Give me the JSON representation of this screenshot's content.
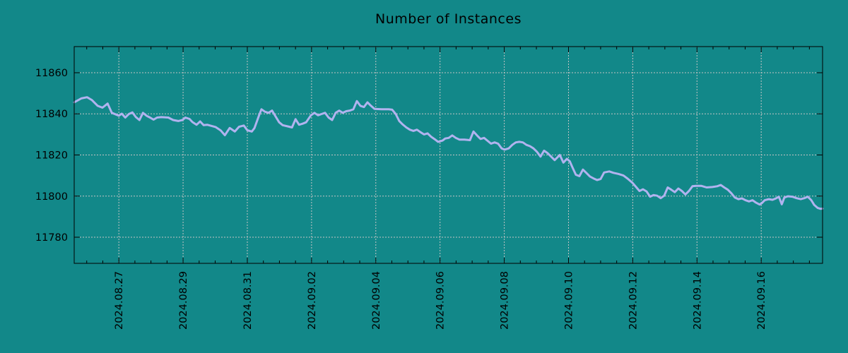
{
  "chart_data": {
    "type": "line",
    "title": "Number of Instances",
    "xlabel": "",
    "ylabel": "",
    "legend": null,
    "colors": {
      "background": "#128889",
      "line": "#b1b3ef",
      "grid": "#c4c4c4",
      "axis": "#000000",
      "text": "#000000"
    },
    "x_axis": {
      "tick_labels": [
        "2024.08.27",
        "2024.08.29",
        "2024.08.31",
        "2024.09.02",
        "2024.09.04",
        "2024.09.06",
        "2024.09.08",
        "2024.09.10",
        "2024.09.12",
        "2024.09.14",
        "2024.09.16"
      ],
      "tick_days": [
        0,
        2,
        4,
        6,
        8,
        10,
        12,
        14,
        16,
        18,
        20
      ],
      "minor_step_days": 0.5,
      "lim_days": [
        -1.39,
        21.91
      ],
      "units": "days since 2024.08.27"
    },
    "y_axis": {
      "ticks": [
        11780,
        11800,
        11820,
        11840,
        11860
      ],
      "lim": [
        11767.3,
        11872.7
      ]
    },
    "grid": true,
    "legend_position": "none",
    "series": [
      {
        "name": "instances",
        "points": [
          [
            -1.39,
            11845.6
          ],
          [
            -1.17,
            11847.5
          ],
          [
            -0.99,
            11848.1
          ],
          [
            -0.84,
            11846.7
          ],
          [
            -0.66,
            11843.9
          ],
          [
            -0.51,
            11843.0
          ],
          [
            -0.35,
            11845.0
          ],
          [
            -0.22,
            11840.5
          ],
          [
            -0.11,
            11839.8
          ],
          [
            0.0,
            11839.1
          ],
          [
            0.09,
            11840.1
          ],
          [
            0.2,
            11838.2
          ],
          [
            0.31,
            11839.9
          ],
          [
            0.42,
            11840.7
          ],
          [
            0.53,
            11838.4
          ],
          [
            0.64,
            11837.0
          ],
          [
            0.75,
            11840.5
          ],
          [
            0.86,
            11839.1
          ],
          [
            0.97,
            11838.2
          ],
          [
            1.08,
            11837.2
          ],
          [
            1.19,
            11838.2
          ],
          [
            1.32,
            11838.4
          ],
          [
            1.54,
            11838.2
          ],
          [
            1.69,
            11837.0
          ],
          [
            1.85,
            11836.5
          ],
          [
            1.98,
            11837.0
          ],
          [
            2.07,
            11838.2
          ],
          [
            2.2,
            11837.5
          ],
          [
            2.29,
            11836.0
          ],
          [
            2.42,
            11834.7
          ],
          [
            2.53,
            11836.3
          ],
          [
            2.64,
            11834.5
          ],
          [
            2.75,
            11834.7
          ],
          [
            2.86,
            11834.2
          ],
          [
            3.01,
            11833.6
          ],
          [
            3.17,
            11831.9
          ],
          [
            3.3,
            11829.6
          ],
          [
            3.45,
            11833.1
          ],
          [
            3.61,
            11831.4
          ],
          [
            3.74,
            11833.7
          ],
          [
            3.89,
            11834.3
          ],
          [
            4.0,
            11832.0
          ],
          [
            4.14,
            11831.4
          ],
          [
            4.22,
            11833.0
          ],
          [
            4.38,
            11839.9
          ],
          [
            4.44,
            11842.2
          ],
          [
            4.55,
            11841.0
          ],
          [
            4.66,
            11840.5
          ],
          [
            4.77,
            11841.6
          ],
          [
            4.88,
            11838.7
          ],
          [
            4.99,
            11835.9
          ],
          [
            5.1,
            11834.5
          ],
          [
            5.26,
            11833.9
          ],
          [
            5.39,
            11833.4
          ],
          [
            5.5,
            11837.4
          ],
          [
            5.61,
            11834.7
          ],
          [
            5.72,
            11835.2
          ],
          [
            5.83,
            11835.9
          ],
          [
            5.98,
            11839.3
          ],
          [
            6.09,
            11840.5
          ],
          [
            6.2,
            11839.3
          ],
          [
            6.31,
            11839.9
          ],
          [
            6.42,
            11840.5
          ],
          [
            6.53,
            11838.2
          ],
          [
            6.64,
            11837.0
          ],
          [
            6.75,
            11840.5
          ],
          [
            6.86,
            11841.6
          ],
          [
            6.97,
            11840.5
          ],
          [
            7.08,
            11841.3
          ],
          [
            7.19,
            11841.6
          ],
          [
            7.3,
            11842.2
          ],
          [
            7.41,
            11846.2
          ],
          [
            7.52,
            11843.9
          ],
          [
            7.63,
            11843.3
          ],
          [
            7.74,
            11845.6
          ],
          [
            7.85,
            11843.9
          ],
          [
            7.96,
            11842.4
          ],
          [
            8.18,
            11842.2
          ],
          [
            8.4,
            11842.2
          ],
          [
            8.51,
            11842.0
          ],
          [
            8.62,
            11839.9
          ],
          [
            8.73,
            11836.5
          ],
          [
            8.84,
            11834.8
          ],
          [
            8.95,
            11833.4
          ],
          [
            9.06,
            11832.3
          ],
          [
            9.17,
            11831.7
          ],
          [
            9.28,
            11832.3
          ],
          [
            9.39,
            11831.1
          ],
          [
            9.5,
            11830.0
          ],
          [
            9.61,
            11830.5
          ],
          [
            9.72,
            11828.9
          ],
          [
            9.83,
            11827.7
          ],
          [
            9.94,
            11826.4
          ],
          [
            10.08,
            11827.0
          ],
          [
            10.16,
            11828.0
          ],
          [
            10.27,
            11828.3
          ],
          [
            10.38,
            11829.5
          ],
          [
            10.49,
            11828.3
          ],
          [
            10.6,
            11827.5
          ],
          [
            10.76,
            11827.5
          ],
          [
            10.93,
            11827.2
          ],
          [
            11.04,
            11831.4
          ],
          [
            11.15,
            11829.5
          ],
          [
            11.26,
            11827.8
          ],
          [
            11.37,
            11828.3
          ],
          [
            11.48,
            11826.9
          ],
          [
            11.59,
            11825.5
          ],
          [
            11.7,
            11826.1
          ],
          [
            11.81,
            11825.5
          ],
          [
            11.92,
            11823.2
          ],
          [
            12.01,
            11822.6
          ],
          [
            12.14,
            11823.2
          ],
          [
            12.25,
            11824.9
          ],
          [
            12.36,
            11826.1
          ],
          [
            12.47,
            11826.4
          ],
          [
            12.58,
            11826.1
          ],
          [
            12.69,
            11824.9
          ],
          [
            12.8,
            11824.3
          ],
          [
            12.91,
            11823.2
          ],
          [
            13.02,
            11821.5
          ],
          [
            13.13,
            11819.2
          ],
          [
            13.24,
            11822.1
          ],
          [
            13.35,
            11820.9
          ],
          [
            13.46,
            11819.2
          ],
          [
            13.57,
            11817.5
          ],
          [
            13.73,
            11820.0
          ],
          [
            13.84,
            11816.3
          ],
          [
            13.95,
            11818.1
          ],
          [
            14.04,
            11816.9
          ],
          [
            14.12,
            11814.1
          ],
          [
            14.23,
            11810.4
          ],
          [
            14.34,
            11809.7
          ],
          [
            14.45,
            11812.9
          ],
          [
            14.56,
            11811.2
          ],
          [
            14.67,
            11809.5
          ],
          [
            14.78,
            11808.6
          ],
          [
            14.89,
            11807.8
          ],
          [
            15.0,
            11808.3
          ],
          [
            15.11,
            11811.5
          ],
          [
            15.27,
            11812.0
          ],
          [
            15.4,
            11811.3
          ],
          [
            15.55,
            11810.8
          ],
          [
            15.71,
            11810.0
          ],
          [
            15.84,
            11808.5
          ],
          [
            15.99,
            11806.5
          ],
          [
            16.1,
            11804.5
          ],
          [
            16.21,
            11802.5
          ],
          [
            16.32,
            11803.3
          ],
          [
            16.43,
            11802.3
          ],
          [
            16.54,
            11799.7
          ],
          [
            16.65,
            11800.5
          ],
          [
            16.76,
            11800.2
          ],
          [
            16.87,
            11799.0
          ],
          [
            16.98,
            11800.2
          ],
          [
            17.09,
            11804.2
          ],
          [
            17.2,
            11803.1
          ],
          [
            17.31,
            11801.9
          ],
          [
            17.42,
            11803.7
          ],
          [
            17.53,
            11802.5
          ],
          [
            17.64,
            11800.8
          ],
          [
            17.75,
            11802.5
          ],
          [
            17.86,
            11804.8
          ],
          [
            17.97,
            11805.0
          ],
          [
            18.13,
            11805.0
          ],
          [
            18.3,
            11804.2
          ],
          [
            18.48,
            11804.4
          ],
          [
            18.63,
            11804.8
          ],
          [
            18.74,
            11805.4
          ],
          [
            18.85,
            11804.2
          ],
          [
            18.96,
            11803.1
          ],
          [
            19.07,
            11801.4
          ],
          [
            19.18,
            11799.3
          ],
          [
            19.29,
            11798.5
          ],
          [
            19.4,
            11798.9
          ],
          [
            19.51,
            11798.0
          ],
          [
            19.62,
            11797.4
          ],
          [
            19.73,
            11798.0
          ],
          [
            19.84,
            11796.8
          ],
          [
            19.95,
            11795.9
          ],
          [
            20.02,
            11796.6
          ],
          [
            20.11,
            11798.0
          ],
          [
            20.24,
            11798.5
          ],
          [
            20.35,
            11798.2
          ],
          [
            20.46,
            11798.9
          ],
          [
            20.55,
            11799.7
          ],
          [
            20.64,
            11796.0
          ],
          [
            20.72,
            11799.3
          ],
          [
            20.83,
            11799.9
          ],
          [
            20.97,
            11799.7
          ],
          [
            21.1,
            11799.0
          ],
          [
            21.23,
            11798.5
          ],
          [
            21.34,
            11799.0
          ],
          [
            21.45,
            11799.7
          ],
          [
            21.56,
            11798.0
          ],
          [
            21.65,
            11795.7
          ],
          [
            21.76,
            11794.2
          ],
          [
            21.85,
            11793.8
          ],
          [
            21.91,
            11793.9
          ]
        ]
      }
    ]
  }
}
